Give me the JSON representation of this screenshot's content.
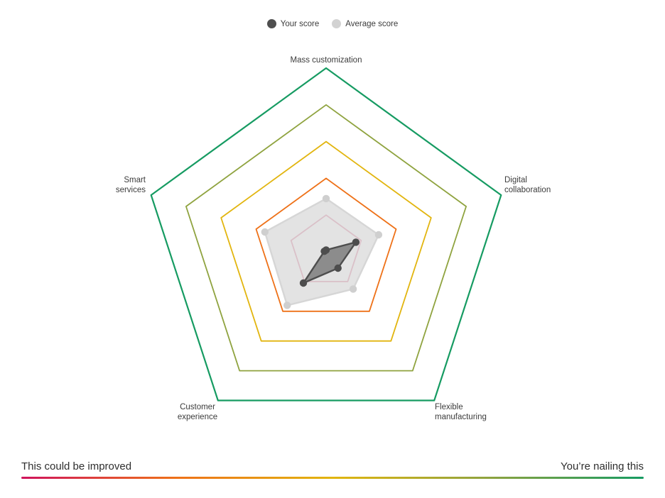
{
  "legend": {
    "items": [
      {
        "label": "Your score",
        "color": "#4f4f4f"
      },
      {
        "label": "Average score",
        "color": "#d2d2d2"
      }
    ]
  },
  "chart_data": {
    "type": "radar",
    "title": "",
    "categories": [
      "Mass customization",
      "Digital collaboration",
      "Flexible manufacturing",
      "Customer experience",
      "Smart services"
    ],
    "axis_min": 0,
    "axis_max": 5,
    "rings": {
      "levels": [
        1,
        2,
        3,
        4,
        5
      ],
      "colors_inner_to_outer": [
        "#d05377",
        "#ee7118",
        "#e2b50f",
        "#8fa33f",
        "#169b62"
      ]
    },
    "series": [
      {
        "name": "Average score",
        "values": [
          1.45,
          1.5,
          1.25,
          1.8,
          1.75
        ],
        "stroke": "#d6d6d6",
        "fill": "#dcdcdc",
        "fill_opacity": 0.8,
        "dot_color": "#cfcfcf"
      },
      {
        "name": "Your score",
        "values": [
          0.05,
          0.85,
          0.55,
          1.05,
          0.05
        ],
        "stroke": "#4d4d4d",
        "fill": "#7d7d7d",
        "fill_opacity": 0.85,
        "dot_color": "#4d4d4d"
      }
    ],
    "legend_position": "top-center",
    "grid": "pentagon-rings"
  },
  "footer": {
    "left_label": "This could be improved",
    "right_label": "You’re nailing this",
    "gradient_colors": [
      "#cf135c",
      "#ee7118",
      "#e2b50f",
      "#8fa33f",
      "#169b62"
    ]
  }
}
